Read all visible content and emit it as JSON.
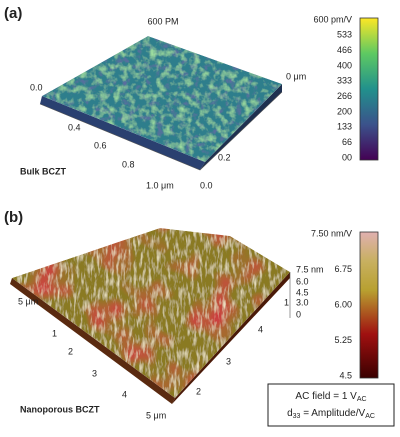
{
  "panel_a": {
    "label": "(a)",
    "title": "600 PM",
    "sample": "Bulk BCZT",
    "axis_left": [
      "0.0",
      "0.4",
      "0.6",
      "0.8",
      "1.0 μm"
    ],
    "axis_right": [
      "0 μm",
      "0.2",
      "0.0"
    ],
    "colorbar": [
      "600 pm/V",
      "533",
      "466",
      "400",
      "333",
      "266",
      "200",
      "133",
      "66",
      "00"
    ]
  },
  "panel_b": {
    "label": "(b)",
    "sample": "Nanoporous BCZT",
    "axis_height": [
      "7.5 nm",
      "6.0",
      "4.5",
      "3.0",
      "0"
    ],
    "axis_left": [
      "5 μm",
      "1",
      "2",
      "3",
      "4",
      "5 μm"
    ],
    "axis_right": [
      "4",
      "3",
      "2",
      "1"
    ],
    "colorbar": [
      "7.50 nm/V",
      "6.75",
      "6.00",
      "5.25",
      "4.5"
    ],
    "legend_box": [
      {
        "text": "AC field = 1 V",
        "sub": "AC"
      },
      {
        "pre": "d",
        "pre_sub": "33",
        "text": " = Amplitude/V",
        "sub": "AC"
      }
    ]
  }
}
